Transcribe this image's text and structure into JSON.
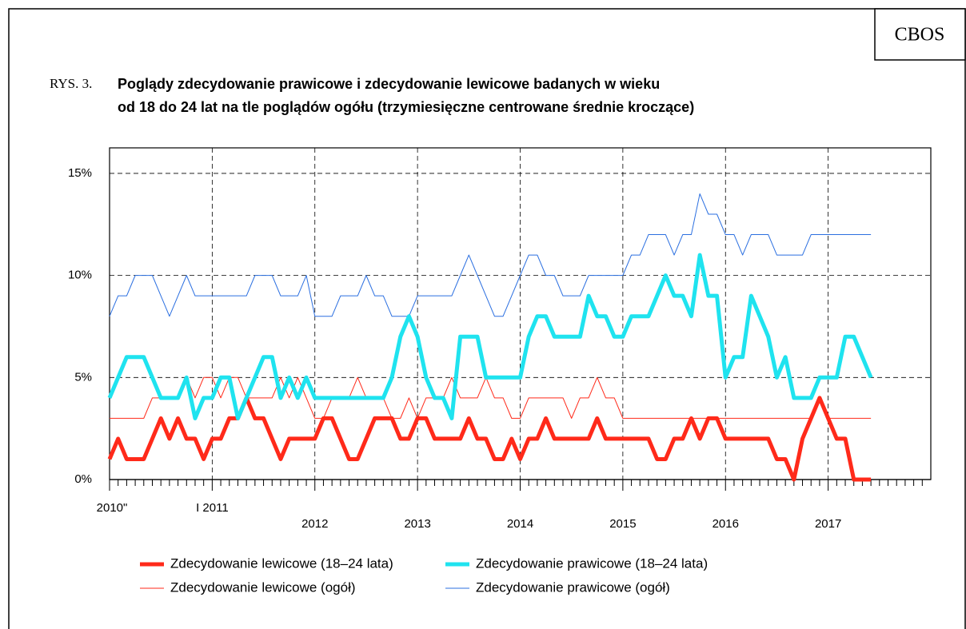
{
  "chart_data": {
    "type": "line",
    "source": "CBOS",
    "figure_label": "RYS. 3.",
    "title": [
      "Poglądy zdecydowanie prawicowe i zdecydowanie lewicowe badanych w wieku",
      "od 18 do 24 lat na tle poglądów ogółu (trzymiesięczne centrowane średnie kroczące)"
    ],
    "categories": [
      "2010\"",
      null,
      null,
      null,
      null,
      null,
      null,
      null,
      null,
      null,
      null,
      null,
      "I 2011",
      null,
      null,
      null,
      null,
      null,
      null,
      null,
      null,
      null,
      null,
      null,
      "2012",
      null,
      null,
      null,
      null,
      null,
      null,
      null,
      null,
      null,
      null,
      null,
      "2013",
      null,
      null,
      null,
      null,
      null,
      null,
      null,
      null,
      null,
      null,
      null,
      "2014",
      null,
      null,
      null,
      null,
      null,
      null,
      null,
      null,
      null,
      null,
      null,
      "2015",
      null,
      null,
      null,
      null,
      null,
      null,
      null,
      null,
      null,
      null,
      null,
      "2016",
      null,
      null,
      null,
      null,
      null,
      null,
      null,
      null,
      null,
      null,
      null,
      "2017",
      null,
      null,
      null,
      null,
      null,
      null,
      null,
      null,
      null,
      null,
      null
    ],
    "ylim": [
      0,
      16.25
    ],
    "yticks": [
      {
        "value": 0,
        "label": "0%"
      },
      {
        "value": 5,
        "label": "5%"
      },
      {
        "value": 10,
        "label": "10%"
      },
      {
        "value": 15,
        "label": "15%"
      }
    ],
    "grid": true,
    "series": [
      {
        "name": "Zdecydowanie lewicowe (18–24 lata)",
        "color": "#ff2a1a",
        "line_width": 5,
        "values": [
          1,
          2,
          1,
          1,
          1,
          2,
          3,
          2,
          3,
          2,
          2,
          1,
          2,
          2,
          3,
          3,
          4,
          3,
          3,
          2,
          1,
          2,
          2,
          2,
          2,
          3,
          3,
          2,
          1,
          1,
          2,
          3,
          3,
          3,
          2,
          2,
          3,
          3,
          2,
          2,
          2,
          2,
          3,
          2,
          2,
          1,
          1,
          2,
          1,
          2,
          2,
          3,
          2,
          2,
          2,
          2,
          2,
          3,
          2,
          2,
          2,
          2,
          2,
          2,
          1,
          1,
          2,
          2,
          3,
          2,
          3,
          3,
          2,
          2,
          2,
          2,
          2,
          2,
          1,
          1,
          0,
          2,
          3,
          4,
          3,
          2,
          2,
          0,
          0,
          0,
          null,
          null,
          null,
          null,
          null,
          null
        ]
      },
      {
        "name": "Zdecydowanie prawicowe (18–24 lata)",
        "color": "#1fe3ef",
        "line_width": 5,
        "values": [
          4,
          5,
          6,
          6,
          6,
          5,
          4,
          4,
          4,
          5,
          3,
          4,
          4,
          5,
          5,
          3,
          4,
          5,
          6,
          6,
          4,
          5,
          4,
          5,
          4,
          4,
          4,
          4,
          4,
          4,
          4,
          4,
          4,
          5,
          7,
          8,
          7,
          5,
          4,
          4,
          3,
          7,
          7,
          7,
          5,
          5,
          5,
          5,
          5,
          7,
          8,
          8,
          7,
          7,
          7,
          7,
          9,
          8,
          8,
          7,
          7,
          8,
          8,
          8,
          9,
          10,
          9,
          9,
          8,
          11,
          9,
          9,
          5,
          6,
          6,
          9,
          8,
          7,
          5,
          6,
          4,
          4,
          4,
          5,
          5,
          5,
          7,
          7,
          6,
          5,
          null,
          null,
          null,
          null,
          null,
          null
        ]
      },
      {
        "name": "Zdecydowanie lewicowe (ogół)",
        "color": "#ff2a1a",
        "line_width": 1,
        "values": [
          3,
          3,
          3,
          3,
          3,
          4,
          4,
          4,
          4,
          5,
          4,
          5,
          5,
          4,
          5,
          5,
          4,
          4,
          4,
          4,
          5,
          4,
          5,
          4,
          3,
          3,
          4,
          4,
          4,
          5,
          4,
          4,
          4,
          3,
          3,
          4,
          3,
          4,
          4,
          4,
          5,
          4,
          4,
          4,
          5,
          4,
          4,
          3,
          3,
          4,
          4,
          4,
          4,
          4,
          3,
          4,
          4,
          5,
          4,
          4,
          3,
          3,
          3,
          3,
          3,
          3,
          3,
          3,
          3,
          3,
          3,
          3,
          3,
          3,
          3,
          3,
          3,
          3,
          3,
          3,
          3,
          3,
          3,
          4,
          3,
          3,
          3,
          3,
          3,
          3,
          null,
          null,
          null,
          null,
          null,
          null
        ]
      },
      {
        "name": "Zdecydowanie prawicowe (ogół)",
        "color": "#2b6fe0",
        "line_width": 1,
        "values": [
          8,
          9,
          9,
          10,
          10,
          10,
          9,
          8,
          9,
          10,
          9,
          9,
          9,
          9,
          9,
          9,
          9,
          10,
          10,
          10,
          9,
          9,
          9,
          10,
          8,
          8,
          8,
          9,
          9,
          9,
          10,
          9,
          9,
          8,
          8,
          8,
          9,
          9,
          9,
          9,
          9,
          10,
          11,
          10,
          9,
          8,
          8,
          9,
          10,
          11,
          11,
          10,
          10,
          9,
          9,
          9,
          10,
          10,
          10,
          10,
          10,
          11,
          11,
          12,
          12,
          12,
          11,
          12,
          12,
          14,
          13,
          13,
          12,
          12,
          11,
          12,
          12,
          12,
          11,
          11,
          11,
          11,
          12,
          12,
          12,
          12,
          12,
          12,
          12,
          12,
          null,
          null,
          null,
          null,
          null,
          null
        ]
      }
    ]
  }
}
